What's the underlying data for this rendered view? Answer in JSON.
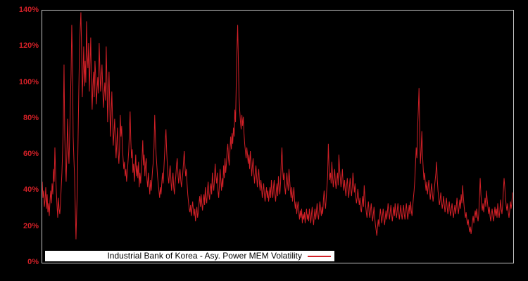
{
  "window": {
    "background_color": "#000000"
  },
  "chart_data": {
    "type": "line",
    "title": "",
    "xlabel": "",
    "ylabel": "",
    "x_axis": {
      "labels_visible": false,
      "unit": "time (unlabeled)"
    },
    "ylim": [
      0,
      140
    ],
    "yticks": [
      "0%",
      "20%",
      "40%",
      "60%",
      "80%",
      "100%",
      "120%",
      "140%"
    ],
    "grid": false,
    "plot_border_color": "#c4c4c4",
    "tick_label_color": "#d22027",
    "background_color": "#000000",
    "legend": {
      "position": "bottom-center-inside",
      "background": "#ffffff",
      "text_color": "#000000",
      "label": "Industrial Bank of Korea - Asy. Power MEM Volatility",
      "sample_color": "#d22027"
    },
    "series": [
      {
        "name": "Industrial Bank of Korea - Asy. Power MEM Volatility",
        "color": "#d22027",
        "unit": "%",
        "values": [
          45,
          36,
          40,
          31,
          35,
          42,
          30,
          38,
          28,
          33,
          26,
          34,
          40,
          33,
          44,
          38,
          52,
          45,
          64,
          50,
          40,
          32,
          25,
          36,
          30,
          27,
          33,
          42,
          50,
          62,
          78,
          110,
          72,
          55,
          45,
          60,
          80,
          65,
          55,
          70,
          88,
          105,
          132,
          112,
          70,
          58,
          48,
          30,
          13,
          28,
          42,
          70,
          95,
          118,
          130,
          139,
          118,
          92,
          105,
          120,
          98,
          112,
          100,
          134,
          115,
          108,
          122,
          95,
          110,
          125,
          100,
          85,
          98,
          106,
          92,
          112,
          104,
          88,
          96,
          103,
          94,
          122,
          108,
          95,
          102,
          110,
          98,
          86,
          93,
          100,
          90,
          120,
          102,
          78,
          92,
          106,
          88,
          70,
          82,
          95,
          80,
          65,
          72,
          80,
          68,
          58,
          66,
          75,
          62,
          55,
          63,
          82,
          70,
          76,
          64,
          58,
          52,
          56,
          48,
          52,
          45,
          50,
          56,
          62,
          72,
          84,
          68,
          58,
          63,
          50,
          55,
          45,
          52,
          60,
          48,
          54,
          47,
          56,
          42,
          50,
          44,
          52,
          58,
          68,
          54,
          60,
          48,
          55,
          58,
          46,
          42,
          50,
          44,
          38,
          46,
          40,
          46,
          52,
          56,
          64,
          82,
          70,
          60,
          54,
          48,
          44,
          40,
          36,
          42,
          38,
          44,
          50,
          44,
          52,
          60,
          68,
          74,
          62,
          54,
          48,
          44,
          50,
          54,
          46,
          40,
          46,
          50,
          42,
          38,
          44,
          48,
          54,
          58,
          50,
          44,
          48,
          52,
          46,
          42,
          46,
          50,
          56,
          62,
          54,
          48,
          52,
          44,
          38,
          34,
          30,
          28,
          32,
          26,
          30,
          34,
          29,
          26,
          30,
          23,
          27,
          31,
          25,
          28,
          33,
          37,
          31,
          38,
          33,
          29,
          34,
          38,
          32,
          42,
          36,
          33,
          40,
          45,
          38,
          35,
          41,
          44,
          38,
          50,
          44,
          40,
          46,
          55,
          48,
          44,
          50,
          40,
          36,
          43,
          52,
          46,
          40,
          47,
          42,
          54,
          47,
          58,
          50,
          55,
          62,
          66,
          58,
          54,
          62,
          70,
          63,
          72,
          66,
          75,
          70,
          85,
          78,
          100,
          118,
          132,
          112,
          92,
          84,
          78,
          74,
          82,
          76,
          81,
          72,
          66,
          62,
          58,
          64,
          60,
          55,
          60,
          52,
          62,
          56,
          48,
          54,
          58,
          50,
          44,
          50,
          54,
          48,
          42,
          48,
          52,
          44,
          40,
          46,
          42,
          36,
          40,
          44,
          38,
          34,
          38,
          42,
          36,
          40,
          34,
          38,
          42,
          36,
          46,
          40,
          36,
          42,
          46,
          38,
          34,
          40,
          44,
          37,
          48,
          42,
          38,
          44,
          56,
          64,
          52,
          46,
          50,
          42,
          38,
          44,
          50,
          44,
          40,
          52,
          46,
          40,
          36,
          42,
          34,
          38,
          42,
          34,
          30,
          34,
          27,
          31,
          34,
          28,
          24,
          29,
          25,
          30,
          22,
          27,
          24,
          28,
          22,
          26,
          30,
          24,
          27,
          23,
          30,
          26,
          22,
          27,
          31,
          25,
          21,
          26,
          30,
          24,
          28,
          33,
          27,
          24,
          29,
          34,
          30,
          26,
          31,
          27,
          35,
          40,
          34,
          30,
          36,
          42,
          48,
          66,
          54,
          46,
          50,
          44,
          56,
          48,
          42,
          47,
          52,
          45,
          41,
          46,
          50,
          43,
          60,
          52,
          47,
          42,
          46,
          52,
          44,
          40,
          46,
          41,
          37,
          43,
          47,
          40,
          36,
          42,
          47,
          41,
          37,
          42,
          50,
          44,
          39,
          44,
          37,
          33,
          36,
          41,
          36,
          32,
          36,
          30,
          28,
          33,
          37,
          31,
          43,
          37,
          32,
          28,
          25,
          30,
          34,
          28,
          25,
          29,
          33,
          27,
          23,
          27,
          31,
          25,
          21,
          18,
          15,
          20,
          24,
          20,
          25,
          30,
          26,
          22,
          26,
          30,
          25,
          21,
          25,
          29,
          24,
          28,
          33,
          28,
          24,
          28,
          32,
          27,
          23,
          27,
          31,
          26,
          33,
          28,
          25,
          29,
          33,
          28,
          24,
          28,
          32,
          27,
          24,
          28,
          32,
          27,
          24,
          29,
          33,
          28,
          24,
          28,
          32,
          27,
          34,
          29,
          26,
          31,
          36,
          40,
          46,
          55,
          64,
          58,
          75,
          85,
          97,
          72,
          55,
          62,
          73,
          60,
          52,
          46,
          50,
          44,
          40,
          45,
          38,
          42,
          46,
          40,
          35,
          40,
          44,
          38,
          34,
          38,
          42,
          46,
          50,
          56,
          46,
          40,
          36,
          32,
          35,
          39,
          34,
          30,
          33,
          37,
          32,
          28,
          32,
          36,
          31,
          27,
          30,
          34,
          29,
          26,
          30,
          33,
          28,
          25,
          29,
          32,
          27,
          31,
          36,
          31,
          27,
          31,
          35,
          30,
          38,
          33,
          43,
          37,
          32,
          28,
          25,
          28,
          24,
          21,
          24,
          20,
          17,
          20,
          16,
          19,
          23,
          26,
          22,
          26,
          29,
          25,
          30,
          26,
          23,
          27,
          36,
          47,
          38,
          33,
          29,
          33,
          28,
          32,
          36,
          31,
          40,
          35,
          31,
          27,
          31,
          26,
          23,
          27,
          30,
          26,
          23,
          27,
          31,
          26,
          30,
          25,
          33,
          28,
          25,
          29,
          35,
          30,
          27,
          32,
          40,
          47,
          42,
          36,
          32,
          29,
          33,
          28,
          25,
          29,
          34,
          30,
          33,
          39
        ]
      }
    ]
  }
}
